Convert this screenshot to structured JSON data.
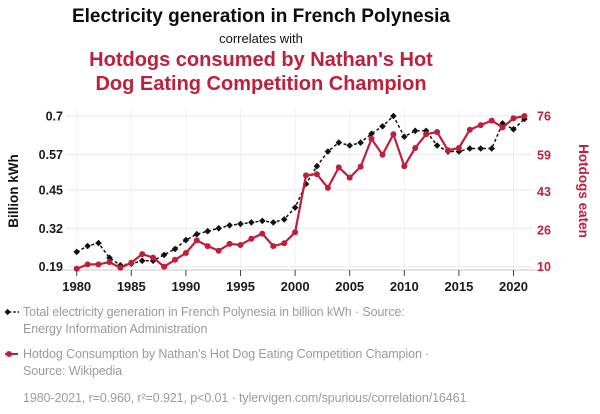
{
  "header": {
    "title": "Electricity generation in French Polynesia",
    "subtitle": "correlates with",
    "secondary_title": "Hotdogs consumed by Nathan's Hot Dog Eating Competition Champion"
  },
  "colors": {
    "accent_red": "#c01f3b",
    "series_black": "#111111",
    "grid_gray": "#e7e7e7",
    "footer_gray": "#9b9b9b",
    "axis_text": "#1a1a1a"
  },
  "chart_data": {
    "type": "line",
    "x": [
      1980,
      1981,
      1982,
      1983,
      1984,
      1985,
      1986,
      1987,
      1988,
      1989,
      1990,
      1991,
      1992,
      1993,
      1994,
      1995,
      1996,
      1997,
      1998,
      1999,
      2000,
      2001,
      2002,
      2003,
      2004,
      2005,
      2006,
      2007,
      2008,
      2009,
      2010,
      2011,
      2012,
      2013,
      2014,
      2015,
      2016,
      2017,
      2018,
      2019,
      2020,
      2021
    ],
    "series": [
      {
        "name": "Total electricity generation in French Polynesia",
        "unit": "billion kWh",
        "axis": "left",
        "color": "#111111",
        "style": "dashed-line-diamond-markers",
        "values": [
          0.24,
          0.26,
          0.27,
          0.22,
          0.195,
          0.2,
          0.21,
          0.21,
          0.23,
          0.25,
          0.28,
          0.3,
          0.31,
          0.32,
          0.33,
          0.335,
          0.34,
          0.345,
          0.34,
          0.35,
          0.39,
          0.47,
          0.53,
          0.58,
          0.61,
          0.6,
          0.61,
          0.64,
          0.665,
          0.7,
          0.63,
          0.65,
          0.65,
          0.6,
          0.58,
          0.58,
          0.59,
          0.59,
          0.59,
          0.675,
          0.655,
          0.69
        ]
      },
      {
        "name": "Hotdog Consumption by Nathan's Hot Dog Eating Competition Champion",
        "unit": "hotdogs eaten",
        "axis": "right",
        "color": "#c01f3b",
        "style": "solid-line-circle-markers",
        "values": [
          9.1,
          11,
          11,
          12,
          9.5,
          11.75,
          15.5,
          14,
          10,
          13,
          16,
          21.5,
          19,
          17,
          20,
          19.5,
          22.25,
          24.5,
          19,
          20.25,
          25.125,
          50,
          50.5,
          44.5,
          53.5,
          49,
          53.75,
          66,
          59,
          68,
          54,
          62,
          68,
          69,
          61,
          62,
          70,
          72,
          74,
          71,
          75,
          76
        ]
      }
    ],
    "left_axis": {
      "label": "Billion kWh",
      "ticks": [
        "0.7",
        "0.57",
        "0.45",
        "0.32",
        "0.19"
      ],
      "tick_values": [
        0.7,
        0.57,
        0.45,
        0.32,
        0.19
      ],
      "range": [
        0.19,
        0.7
      ]
    },
    "right_axis": {
      "label": "Hotdogs eaten",
      "ticks": [
        "76",
        "59",
        "43",
        "26",
        "10"
      ],
      "tick_values": [
        76,
        59,
        43,
        26,
        10
      ],
      "range": [
        10,
        76
      ]
    },
    "x_axis": {
      "ticks": [
        1980,
        1985,
        1990,
        1995,
        2000,
        2005,
        2010,
        2015,
        2020
      ],
      "range": [
        1980,
        2021
      ]
    },
    "grid": true,
    "legend_position": "bottom"
  },
  "footer": {
    "legend": [
      {
        "marker": "black-diamond-dashed",
        "text": "Total electricity generation in French Polynesia in billion kWh · Source: Energy Information Administration"
      },
      {
        "marker": "red-circle-solid",
        "text": "Hotdog Consumption by Nathan's Hot Dog Eating Competition Champion · Source: Wikipedia"
      }
    ],
    "stats": "1980-2021, r=0.960, r²=0.921, p<0.01 · tylervigen.com/spurious/correlation/16461"
  }
}
